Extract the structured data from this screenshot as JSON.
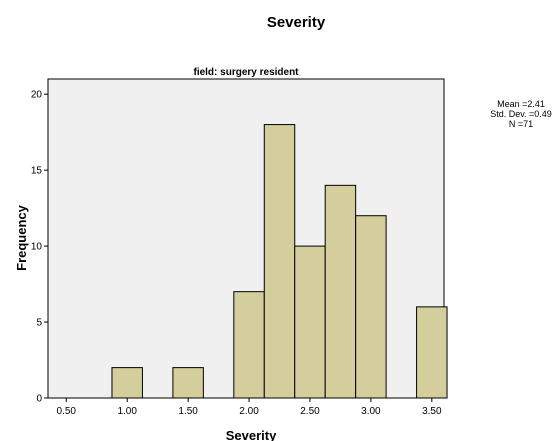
{
  "chart_data": {
    "type": "bar",
    "title": "Severity",
    "subtitle": "field: surgery resident",
    "xlabel": "Severity",
    "ylabel": "Frequency",
    "xlim": [
      0.35,
      3.6
    ],
    "ylim": [
      0,
      21
    ],
    "x_ticks": [
      "0.50",
      "1.00",
      "1.50",
      "2.00",
      "2.50",
      "3.00",
      "3.50"
    ],
    "x_tick_values": [
      0.5,
      1.0,
      1.5,
      2.0,
      2.5,
      3.0,
      3.5
    ],
    "y_ticks": [
      0,
      5,
      10,
      15,
      20
    ],
    "bins": [
      {
        "start": 0.875,
        "end": 1.125,
        "value": 2
      },
      {
        "start": 1.375,
        "end": 1.625,
        "value": 2
      },
      {
        "start": 1.875,
        "end": 2.125,
        "value": 7
      },
      {
        "start": 2.125,
        "end": 2.375,
        "value": 18
      },
      {
        "start": 2.375,
        "end": 2.625,
        "value": 10
      },
      {
        "start": 2.625,
        "end": 2.875,
        "value": 14
      },
      {
        "start": 2.875,
        "end": 3.125,
        "value": 12
      },
      {
        "start": 3.125,
        "end": 3.375,
        "value": 0
      },
      {
        "start": 3.375,
        "end": 3.625,
        "value": 6
      }
    ],
    "stats": {
      "mean": "Mean =2.41",
      "std_dev": "Std. Dev. =0.49",
      "n": "N =71"
    },
    "grid": false,
    "colors": {
      "bar_fill": "#d3ce9c",
      "plot_background": "#f0f0f0",
      "border": "#000000"
    }
  }
}
